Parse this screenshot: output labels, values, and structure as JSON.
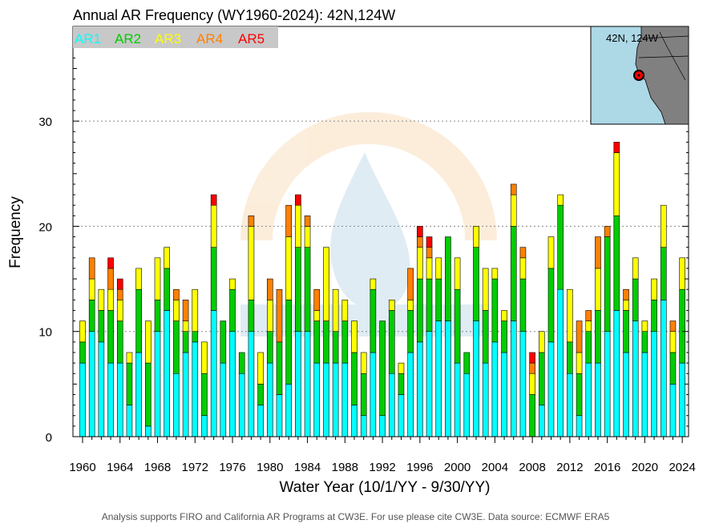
{
  "chart_data": {
    "type": "bar",
    "stacked": true,
    "title": "Annual AR Frequency (WY1960-2024): 42N,124W",
    "xlabel": "Water Year (10/1/YY - 9/30/YY)",
    "ylabel": "Frequency",
    "ylim": [
      0,
      30
    ],
    "yticks": [
      0,
      10,
      20,
      30
    ],
    "grid": "dashed horizontal at major y ticks",
    "legend_placement": "top-left",
    "xtick_labels": [
      "1960",
      "1964",
      "1968",
      "1972",
      "1976",
      "1980",
      "1984",
      "1988",
      "1992",
      "1996",
      "2000",
      "2004",
      "2008",
      "2012",
      "2016",
      "2020",
      "2024"
    ],
    "categories": [
      1960,
      1961,
      1962,
      1963,
      1964,
      1965,
      1966,
      1967,
      1968,
      1969,
      1970,
      1971,
      1972,
      1973,
      1974,
      1975,
      1976,
      1977,
      1978,
      1979,
      1980,
      1981,
      1982,
      1983,
      1984,
      1985,
      1986,
      1987,
      1988,
      1989,
      1990,
      1991,
      1992,
      1993,
      1994,
      1995,
      1996,
      1997,
      1998,
      1999,
      2000,
      2001,
      2002,
      2003,
      2004,
      2005,
      2006,
      2007,
      2008,
      2009,
      2010,
      2011,
      2012,
      2013,
      2014,
      2015,
      2016,
      2017,
      2018,
      2019,
      2020,
      2021,
      2022,
      2023,
      2024
    ],
    "series": [
      {
        "name": "AR1",
        "color": "#00ffff",
        "values": [
          7,
          10,
          9,
          7,
          7,
          3,
          8,
          1,
          10,
          12,
          6,
          8,
          9,
          2,
          12,
          7,
          10,
          6,
          10,
          3,
          7,
          4,
          5,
          10,
          10,
          7,
          7,
          7,
          7,
          3,
          2,
          8,
          2,
          6,
          4,
          8,
          9,
          10,
          11,
          11,
          7,
          6,
          11,
          7,
          9,
          8,
          11,
          10,
          0,
          3,
          9,
          14,
          6,
          2,
          7,
          7,
          10,
          12,
          8,
          11,
          8,
          10,
          13,
          5,
          7
        ]
      },
      {
        "name": "AR2",
        "color": "#00cc00",
        "values": [
          2,
          3,
          3,
          5,
          4,
          4,
          6,
          6,
          3,
          4,
          5,
          2,
          1,
          4,
          6,
          4,
          4,
          2,
          3,
          2,
          3,
          5,
          8,
          8,
          8,
          4,
          4,
          3,
          4,
          5,
          4,
          6,
          9,
          6,
          2,
          4,
          6,
          5,
          4,
          8,
          7,
          2,
          7,
          5,
          6,
          3,
          9,
          5,
          4,
          5,
          7,
          8,
          3,
          4,
          3,
          5,
          9,
          9,
          4,
          4,
          2,
          3,
          5,
          3,
          7
        ]
      },
      {
        "name": "AR3",
        "color": "#ffff00",
        "values": [
          2,
          2,
          2,
          2,
          2,
          1,
          2,
          4,
          4,
          2,
          2,
          1,
          4,
          3,
          4,
          0,
          1,
          0,
          7,
          3,
          3,
          0,
          6,
          4,
          2,
          1,
          7,
          4,
          2,
          3,
          2,
          1,
          0,
          1,
          1,
          1,
          3,
          2,
          2,
          0,
          3,
          0,
          2,
          4,
          1,
          1,
          3,
          2,
          2,
          2,
          3,
          1,
          5,
          2,
          1,
          4,
          0,
          6,
          1,
          2,
          1,
          2,
          4,
          2,
          3
        ]
      },
      {
        "name": "AR4",
        "color": "#ff8000",
        "values": [
          0,
          2,
          0,
          2,
          1,
          0,
          0,
          0,
          0,
          0,
          1,
          2,
          0,
          0,
          0,
          0,
          0,
          0,
          1,
          0,
          2,
          5,
          3,
          0,
          1,
          2,
          0,
          0,
          0,
          0,
          0,
          0,
          0,
          0,
          0,
          3,
          1,
          1,
          0,
          0,
          0,
          0,
          0,
          0,
          0,
          0,
          1,
          1,
          1,
          0,
          0,
          0,
          0,
          3,
          1,
          3,
          1,
          0,
          1,
          0,
          0,
          0,
          0,
          1,
          0
        ]
      },
      {
        "name": "AR5",
        "color": "#ff0000",
        "values": [
          0,
          0,
          0,
          1,
          1,
          0,
          0,
          0,
          0,
          0,
          0,
          0,
          0,
          0,
          1,
          0,
          0,
          0,
          0,
          0,
          0,
          0,
          0,
          1,
          0,
          0,
          0,
          0,
          0,
          0,
          0,
          0,
          0,
          0,
          0,
          0,
          1,
          1,
          0,
          0,
          0,
          0,
          0,
          0,
          0,
          0,
          0,
          0,
          1,
          0,
          0,
          0,
          0,
          0,
          0,
          0,
          0,
          1,
          0,
          0,
          0,
          0,
          0,
          0,
          0
        ]
      }
    ]
  },
  "inset": {
    "label": "42N, 124W",
    "water_color": "#add8e6",
    "land_color": "#808080",
    "marker_color": "#ff0000"
  },
  "footer": "Analysis supports FIRO and California AR Programs at CW3E. For use please cite CW3E. Data source: ECMWF ERA5"
}
